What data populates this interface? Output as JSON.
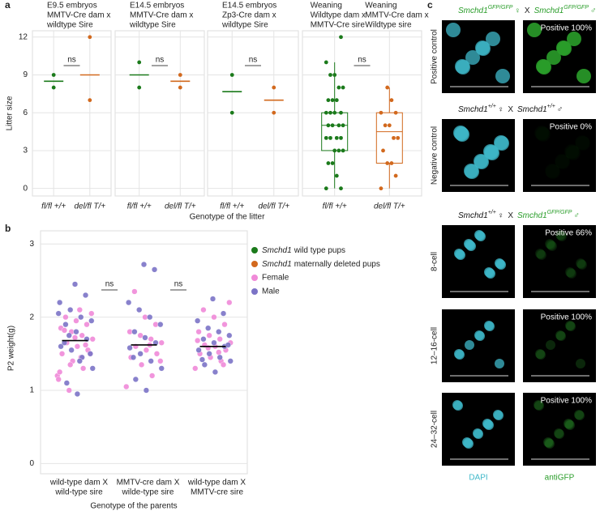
{
  "chart_data": [
    {
      "type": "strip",
      "panel": "a",
      "titles": [
        [
          "E9.5 embryos",
          "MMTV-Cre dam x",
          "wildtype Sire"
        ]
      ],
      "categories": [
        "fl/fl +/+",
        "del/fl T/+"
      ],
      "colors": [
        "#1b7a1b",
        "#d2691e"
      ],
      "values": [
        [
          9,
          8
        ],
        [
          12,
          7
        ]
      ],
      "centers": [
        8.5,
        9
      ],
      "annotation": "ns",
      "y_label": "Litter size",
      "x_label": "Genotype of the litter",
      "ylim": [
        -0.6,
        12.5
      ],
      "yticks": [
        0,
        3,
        6,
        9,
        12
      ],
      "grid": true
    },
    {
      "type": "strip",
      "titles": [
        [
          "E14.5 embryos",
          "MMTV-Cre dam x",
          "wildtype Sire"
        ]
      ],
      "categories": [
        "fl/fl +/+",
        "del/fl T/+"
      ],
      "colors": [
        "#1b7a1b",
        "#d2691e"
      ],
      "values": [
        [
          10,
          8
        ],
        [
          9,
          8
        ]
      ],
      "centers": [
        9,
        8.5
      ],
      "annotation": "ns",
      "ylim": [
        -0.6,
        12.5
      ],
      "yticks": [
        0,
        3,
        6,
        9,
        12
      ],
      "grid": true
    },
    {
      "type": "strip",
      "titles": [
        [
          "E14.5 embryos",
          "Zp3-Cre dam x",
          "wildtype Sire"
        ]
      ],
      "categories": [
        "fl/fl +/+",
        "del/fl T/+"
      ],
      "colors": [
        "#1b7a1b",
        "#d2691e"
      ],
      "values": [
        [
          9,
          6
        ],
        [
          8,
          6
        ]
      ],
      "centers": [
        7.67,
        7
      ],
      "annotation": "ns",
      "ylim": [
        -0.6,
        12.5
      ],
      "yticks": [
        0,
        3,
        6,
        9,
        12
      ],
      "grid": true
    },
    {
      "type": "strip",
      "titles": [
        [
          "Weaning",
          "Wildtype dam x",
          "MMTV-Cre sire"
        ],
        [
          "Weaning",
          "MMTV-Cre dam x",
          "Wildtype sire"
        ]
      ],
      "categories": [
        "fl/fl +/+",
        "del/fl T/+"
      ],
      "colors": [
        "#1b7a1b",
        "#d2691e"
      ],
      "values": [
        [
          0,
          0,
          1,
          2,
          2,
          3,
          3,
          3,
          4,
          4,
          4,
          4,
          5,
          5,
          5,
          5,
          6,
          6,
          6,
          6,
          7,
          7,
          7,
          8,
          8,
          9,
          9,
          10,
          12
        ],
        [
          0,
          1,
          2,
          2,
          3,
          4,
          4,
          5,
          5,
          6,
          6,
          7,
          8
        ]
      ],
      "box": [
        {
          "whislo": 0,
          "q1": 3,
          "med": 5,
          "q3": 6,
          "whishi": 10
        },
        {
          "whislo": 0,
          "q1": 2,
          "med": 4.5,
          "q3": 6,
          "whishi": 8
        }
      ],
      "annotation": "ns",
      "ylim": [
        -0.6,
        12.5
      ],
      "yticks": [
        0,
        3,
        6,
        9,
        12
      ],
      "grid": true
    },
    {
      "type": "swarm",
      "panel": "b",
      "y_label": "P2 weight(g)",
      "x_label": "Genotype of the parents",
      "categories": [
        [
          "wild-type dam X",
          "wild-type sire"
        ],
        [
          "MMTV-cre dam X",
          "wilde-type sire"
        ],
        [
          "wild-type dam X",
          "MMTV-cre sire"
        ]
      ],
      "series": [
        {
          "name": "Female",
          "color": "#f08ad8",
          "values": [
            [
              1.2,
              1.3,
              1.4,
              1.5,
              1.55,
              1.6,
              1.65,
              1.7,
              1.75,
              1.8,
              1.85,
              1.9,
              1.95,
              2.0,
              2.05,
              1.45,
              1.35,
              1.25,
              1.62,
              1.72,
              1.82,
              1.5,
              2.1,
              1.0,
              1.15
            ],
            [
              1.05,
              1.2,
              1.35,
              1.45,
              1.5,
              1.55,
              1.6,
              1.65,
              1.7,
              1.75,
              1.8,
              1.9,
              2.0,
              2.35,
              1.4,
              1.62
            ],
            [
              1.3,
              1.4,
              1.45,
              1.5,
              1.55,
              1.6,
              1.62,
              1.65,
              1.7,
              1.75,
              1.8,
              1.9,
              2.0,
              2.1,
              2.2,
              1.52,
              1.58,
              1.68,
              1.35
            ]
          ]
        },
        {
          "name": "Male",
          "color": "#7b73c6",
          "values": [
            [
              0.95,
              1.1,
              1.3,
              1.45,
              1.55,
              1.6,
              1.7,
              1.8,
              1.9,
              1.95,
              2.0,
              2.1,
              2.2,
              2.3,
              2.45,
              1.65,
              1.5,
              1.4,
              1.75,
              2.05
            ],
            [
              1.0,
              1.15,
              1.3,
              1.4,
              1.5,
              1.58,
              1.65,
              1.72,
              1.8,
              1.9,
              2.0,
              2.1,
              2.2,
              2.65,
              2.72,
              1.45
            ],
            [
              1.25,
              1.35,
              1.4,
              1.45,
              1.5,
              1.55,
              1.6,
              1.65,
              1.7,
              1.75,
              1.8,
              1.85,
              1.95,
              2.05,
              2.25,
              1.42,
              1.62
            ]
          ]
        }
      ],
      "means": [
        1.68,
        1.62,
        1.6
      ],
      "annotations": [
        "ns",
        "ns"
      ],
      "legend": [
        {
          "italic": "Smchd1",
          "text": "wild type pups",
          "color": "#1b7a1b"
        },
        {
          "italic": "Smchd1",
          "text": "maternally deleted pups",
          "color": "#d2691e"
        }
      ],
      "ylim": [
        -0.14,
        3.18
      ],
      "yticks": [
        0,
        1,
        2,
        3
      ],
      "grid": true
    }
  ],
  "panel_c": {
    "panel": "c",
    "cross": "X",
    "rows": [
      {
        "header": [
          {
            "gene": "Smchd1",
            "allele": "GFP/GFP",
            "sex": "♀",
            "color": "#2a9d2a"
          },
          {
            "gene": "Smchd1",
            "allele": "GFP/GFP",
            "sex": "♂",
            "color": "#2a9d2a"
          }
        ],
        "label": "Positive control",
        "positive": "Positive 100%"
      },
      {
        "header": [
          {
            "gene": "Smchd1",
            "allele": "+/+",
            "sex": "♀",
            "color": "#111111"
          },
          {
            "gene": "Smchd1",
            "allele": "+/+",
            "sex": "♂",
            "color": "#111111"
          }
        ],
        "label": "Negative control",
        "positive": "Positive 0%"
      },
      {
        "header": [
          {
            "gene": "Smchd1",
            "allele": "+/+",
            "sex": "♀",
            "color": "#111111"
          },
          {
            "gene": "Smchd1",
            "allele": "GFP/GFP",
            "sex": "♂",
            "color": "#2a9d2a"
          }
        ],
        "label": "8-cell",
        "positive": "Positive 66%"
      },
      {
        "label": "12–16-cell",
        "positive": "Positive 100%"
      },
      {
        "label": "24–32-cell",
        "positive": "Positive 100%"
      }
    ],
    "columns": [
      {
        "label": "DAPI",
        "color": "#3fb8c9"
      },
      {
        "label": "antiGFP",
        "color": "#2a9d2a"
      }
    ]
  }
}
